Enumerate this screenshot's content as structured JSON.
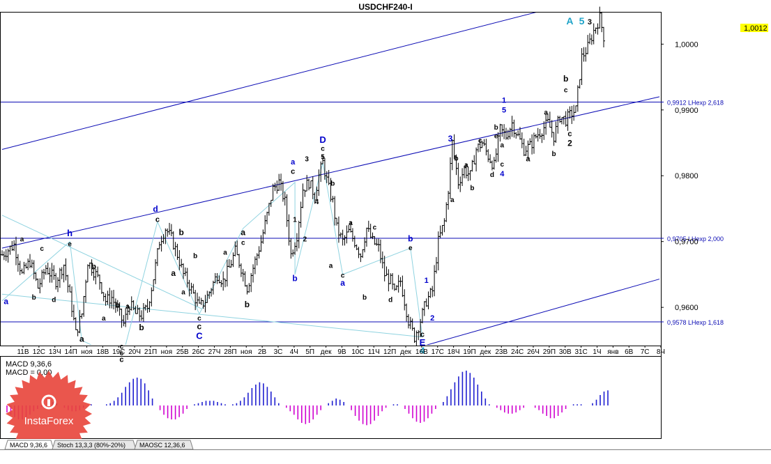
{
  "title": "USDCHF240-I",
  "current_price": "1,0012",
  "colors": {
    "bull_hist": "#1f1fd0",
    "bear_hist": "#d000d0",
    "price_bars": "#000000",
    "channel": "#0a0ab4",
    "fib_line": "#0a0ab4",
    "wave_lines": "#8fd3e0",
    "current_price_bg": "#ffff00",
    "wave_blue": "#0000cc",
    "wave_cyan": "#1ea3c8",
    "logo_red": "#e8443a"
  },
  "chart_data": {
    "type": "ohlc",
    "symbol": "USDCHF",
    "timeframe": "H4",
    "y_ticks": [
      "1,0000",
      "0,9900",
      "0,9800",
      "0,9700",
      "0,9600"
    ],
    "y_tick_values": [
      1.0,
      0.99,
      0.98,
      0.97,
      0.96
    ],
    "ylim": [
      0.9543,
      1.0048
    ],
    "x_ticks": [
      "11В",
      "12С",
      "13Ч",
      "14П",
      "ноя",
      "18В",
      "19С",
      "20Ч",
      "21П",
      "ноя",
      "25В",
      "26С",
      "27Ч",
      "28П",
      "ноя",
      "2В",
      "3С",
      "4Ч",
      "5П",
      "дек",
      "9В",
      "10С",
      "11Ч",
      "12П",
      "дек",
      "16В",
      "17С",
      "18Ч",
      "19П",
      "дек",
      "23В",
      "24С",
      "26Ч",
      "29П",
      "30В",
      "31С",
      "1Ч",
      "янв",
      "6В",
      "7С",
      "8Ч"
    ],
    "fib_levels": [
      {
        "label": "0,9912 LHexp 2,618",
        "value": 0.9912
      },
      {
        "label": "0,9705 LHexp 2,000",
        "value": 0.9705
      },
      {
        "label": "0,9578 LHexp 1,618",
        "value": 0.9578
      }
    ],
    "path_points": [
      [
        0,
        0.968
      ],
      [
        6,
        0.9695
      ],
      [
        10,
        0.965
      ],
      [
        14,
        0.967
      ],
      [
        18,
        0.963
      ],
      [
        22,
        0.966
      ],
      [
        27,
        0.964
      ],
      [
        31,
        0.9665
      ],
      [
        35,
        0.96
      ],
      [
        37,
        0.956
      ],
      [
        40,
        0.959
      ],
      [
        43,
        0.967
      ],
      [
        46,
        0.9655
      ],
      [
        49,
        0.964
      ],
      [
        52,
        0.961
      ],
      [
        55,
        0.9615
      ],
      [
        58,
        0.9595
      ],
      [
        61,
        0.9575
      ],
      [
        64,
        0.9605
      ],
      [
        67,
        0.959
      ],
      [
        70,
        0.9588
      ],
      [
        73,
        0.96
      ],
      [
        76,
        0.9645
      ],
      [
        79,
        0.97
      ],
      [
        82,
        0.972
      ],
      [
        85,
        0.9705
      ],
      [
        88,
        0.968
      ],
      [
        91,
        0.965
      ],
      [
        93,
        0.964
      ],
      [
        96,
        0.962
      ],
      [
        99,
        0.96
      ],
      [
        102,
        0.961
      ],
      [
        105,
        0.963
      ],
      [
        108,
        0.965
      ],
      [
        111,
        0.964
      ],
      [
        114,
        0.966
      ],
      [
        117,
        0.9685
      ],
      [
        120,
        0.966
      ],
      [
        123,
        0.963
      ],
      [
        126,
        0.966
      ],
      [
        130,
        0.97
      ],
      [
        133,
        0.974
      ],
      [
        136,
        0.978
      ],
      [
        139,
        0.979
      ],
      [
        142,
        0.976
      ],
      [
        145,
        0.968
      ],
      [
        148,
        0.971
      ],
      [
        151,
        0.978
      ],
      [
        154,
        0.979
      ],
      [
        157,
        0.977
      ],
      [
        159,
        0.98
      ],
      [
        161,
        0.982
      ],
      [
        164,
        0.978
      ],
      [
        166,
        0.976
      ],
      [
        168,
        0.972
      ],
      [
        171,
        0.97
      ],
      [
        174,
        0.9715
      ],
      [
        177,
        0.97
      ],
      [
        180,
        0.968
      ],
      [
        183,
        0.972
      ],
      [
        186,
        0.97
      ],
      [
        189,
        0.969
      ],
      [
        192,
        0.965
      ],
      [
        195,
        0.964
      ],
      [
        197,
        0.962
      ],
      [
        200,
        0.964
      ],
      [
        202,
        0.961
      ],
      [
        204,
        0.958
      ],
      [
        207,
        0.9555
      ],
      [
        210,
        0.958
      ],
      [
        213,
        0.961
      ],
      [
        216,
        0.9625
      ],
      [
        219,
        0.97
      ],
      [
        222,
        0.973
      ],
      [
        224,
        0.978
      ],
      [
        226,
        0.985
      ],
      [
        229,
        0.979
      ],
      [
        232,
        0.981
      ],
      [
        235,
        0.98
      ],
      [
        238,
        0.984
      ],
      [
        241,
        0.985
      ],
      [
        244,
        0.983
      ],
      [
        247,
        0.9815
      ],
      [
        250,
        0.987
      ],
      [
        253,
        0.986
      ],
      [
        256,
        0.988
      ],
      [
        259,
        0.986
      ],
      [
        262,
        0.984
      ],
      [
        265,
        0.9845
      ],
      [
        268,
        0.986
      ],
      [
        271,
        0.987
      ],
      [
        274,
        0.988
      ],
      [
        277,
        0.986
      ],
      [
        280,
        0.989
      ],
      [
        283,
        0.9885
      ],
      [
        286,
        0.9895
      ],
      [
        288,
        0.99
      ],
      [
        291,
        0.998
      ],
      [
        294,
        0.9995
      ],
      [
        297,
        1.002
      ],
      [
        300,
        1.004
      ],
      [
        302,
        1.0012
      ]
    ],
    "channel_lines": [
      {
        "name": "upper",
        "points": [
          [
            0,
            0.984
          ],
          [
            270,
            1.005
          ]
        ]
      },
      {
        "name": "middle",
        "points": [
          [
            0,
            0.969
          ],
          [
            330,
            0.992
          ]
        ]
      },
      {
        "name": "lower",
        "points": [
          [
            140,
            0.948
          ],
          [
            330,
            0.9643
          ]
        ]
      }
    ],
    "wave_labels": [
      {
        "text": "A",
        "x": 285,
        "y": 1.003,
        "color": "cyan",
        "size": 14
      },
      {
        "text": "5",
        "x": 291,
        "y": 1.003,
        "color": "cyan",
        "size": 14
      },
      {
        "text": "3",
        "x": 295,
        "y": 1.003,
        "color": "black",
        "size": 11
      },
      {
        "text": "D",
        "x": 161,
        "y": 0.985,
        "color": "blue",
        "size": 13
      },
      {
        "text": "c",
        "x": 161,
        "y": 0.9838,
        "color": "black",
        "size": 10
      },
      {
        "text": "5",
        "x": 161,
        "y": 0.9825,
        "color": "black",
        "size": 10
      },
      {
        "text": "a",
        "x": 146,
        "y": 0.9817,
        "color": "blue",
        "size": 11
      },
      {
        "text": "c",
        "x": 146,
        "y": 0.9803,
        "color": "black",
        "size": 11
      },
      {
        "text": "3",
        "x": 153,
        "y": 0.9822,
        "color": "black",
        "size": 10
      },
      {
        "text": "4",
        "x": 158,
        "y": 0.9757,
        "color": "black",
        "size": 10
      },
      {
        "text": "b",
        "x": 166,
        "y": 0.9785,
        "color": "black",
        "size": 10
      },
      {
        "text": "d",
        "x": 77,
        "y": 0.9745,
        "color": "blue",
        "size": 12
      },
      {
        "text": "c",
        "x": 78,
        "y": 0.973,
        "color": "black",
        "size": 11
      },
      {
        "text": "b",
        "x": 90,
        "y": 0.971,
        "color": "black",
        "size": 12
      },
      {
        "text": "h",
        "x": 34,
        "y": 0.9708,
        "color": "blue",
        "size": 13
      },
      {
        "text": "e",
        "x": 34,
        "y": 0.9693,
        "color": "black",
        "size": 10
      },
      {
        "text": "a",
        "x": 10,
        "y": 0.97,
        "color": "black",
        "size": 10
      },
      {
        "text": "c",
        "x": 20,
        "y": 0.9686,
        "color": "black",
        "size": 10
      },
      {
        "text": "a",
        "x": 2,
        "y": 0.9605,
        "color": "blue",
        "size": 12
      },
      {
        "text": "b",
        "x": 16,
        "y": 0.9612,
        "color": "black",
        "size": 10
      },
      {
        "text": "d",
        "x": 26,
        "y": 0.9608,
        "color": "black",
        "size": 10
      },
      {
        "text": "b",
        "x": 46,
        "y": 0.9658,
        "color": "black",
        "size": 12
      },
      {
        "text": "a",
        "x": 40,
        "y": 0.9548,
        "color": "black",
        "size": 12
      },
      {
        "text": "b",
        "x": 58,
        "y": 0.96,
        "color": "black",
        "size": 10
      },
      {
        "text": "a",
        "x": 51,
        "y": 0.958,
        "color": "black",
        "size": 10
      },
      {
        "text": "c",
        "x": 60,
        "y": 0.9537,
        "color": "black",
        "size": 10
      },
      {
        "text": "c",
        "x": 60,
        "y": 0.9527,
        "color": "black",
        "size": 10
      },
      {
        "text": "c",
        "x": 60,
        "y": 0.9517,
        "color": "black",
        "size": 11
      },
      {
        "text": "b",
        "x": 70,
        "y": 0.9565,
        "color": "black",
        "size": 12
      },
      {
        "text": "a",
        "x": 63,
        "y": 0.9598,
        "color": "black",
        "size": 10
      },
      {
        "text": "b",
        "x": 97,
        "y": 0.9675,
        "color": "black",
        "size": 10
      },
      {
        "text": "a",
        "x": 86,
        "y": 0.9648,
        "color": "black",
        "size": 12
      },
      {
        "text": "a",
        "x": 91,
        "y": 0.962,
        "color": "black",
        "size": 10
      },
      {
        "text": "c",
        "x": 99,
        "y": 0.958,
        "color": "black",
        "size": 10
      },
      {
        "text": "c",
        "x": 99,
        "y": 0.9567,
        "color": "black",
        "size": 12
      },
      {
        "text": "C",
        "x": 99,
        "y": 0.9552,
        "color": "blue",
        "size": 13
      },
      {
        "text": "b",
        "x": 123,
        "y": 0.96,
        "color": "black",
        "size": 12
      },
      {
        "text": "a",
        "x": 112,
        "y": 0.968,
        "color": "black",
        "size": 10
      },
      {
        "text": "a",
        "x": 121,
        "y": 0.971,
        "color": "black",
        "size": 12
      },
      {
        "text": "c",
        "x": 121,
        "y": 0.9695,
        "color": "black",
        "size": 10
      },
      {
        "text": "1",
        "x": 147,
        "y": 0.973,
        "color": "black",
        "size": 10
      },
      {
        "text": "2",
        "x": 152,
        "y": 0.97,
        "color": "black",
        "size": 10
      },
      {
        "text": "b",
        "x": 147,
        "y": 0.964,
        "color": "blue",
        "size": 12
      },
      {
        "text": "b",
        "x": 205,
        "y": 0.97,
        "color": "blue",
        "size": 12
      },
      {
        "text": "e",
        "x": 205,
        "y": 0.9687,
        "color": "black",
        "size": 10
      },
      {
        "text": "c",
        "x": 171,
        "y": 0.9645,
        "color": "black",
        "size": 10
      },
      {
        "text": "a",
        "x": 171,
        "y": 0.9633,
        "color": "blue",
        "size": 12
      },
      {
        "text": "a",
        "x": 165,
        "y": 0.966,
        "color": "black",
        "size": 10
      },
      {
        "text": "a",
        "x": 175,
        "y": 0.9725,
        "color": "black",
        "size": 10
      },
      {
        "text": "c",
        "x": 187,
        "y": 0.9718,
        "color": "black",
        "size": 10
      },
      {
        "text": "b",
        "x": 182,
        "y": 0.9612,
        "color": "black",
        "size": 10
      },
      {
        "text": "d",
        "x": 195,
        "y": 0.9608,
        "color": "black",
        "size": 10
      },
      {
        "text": "1",
        "x": 213,
        "y": 0.9637,
        "color": "blue",
        "size": 11
      },
      {
        "text": "2",
        "x": 216,
        "y": 0.958,
        "color": "blue",
        "size": 11
      },
      {
        "text": "c",
        "x": 211,
        "y": 0.9555,
        "color": "black",
        "size": 11
      },
      {
        "text": "E",
        "x": 211,
        "y": 0.9542,
        "color": "blue",
        "size": 13
      },
      {
        "text": "4",
        "x": 211,
        "y": 0.953,
        "color": "cyan",
        "size": 13
      },
      {
        "text": "3",
        "x": 225,
        "y": 0.9852,
        "color": "blue",
        "size": 12
      },
      {
        "text": "b",
        "x": 228,
        "y": 0.9823,
        "color": "black",
        "size": 10
      },
      {
        "text": "a",
        "x": 226,
        "y": 0.976,
        "color": "black",
        "size": 10
      },
      {
        "text": "a",
        "x": 233,
        "y": 0.9813,
        "color": "black",
        "size": 10
      },
      {
        "text": "c",
        "x": 240,
        "y": 0.985,
        "color": "black",
        "size": 10
      },
      {
        "text": "b",
        "x": 236,
        "y": 0.9778,
        "color": "black",
        "size": 10
      },
      {
        "text": "e",
        "x": 248,
        "y": 0.9857,
        "color": "black",
        "size": 10
      },
      {
        "text": "a",
        "x": 251,
        "y": 0.9843,
        "color": "black",
        "size": 10
      },
      {
        "text": "b",
        "x": 248,
        "y": 0.987,
        "color": "black",
        "size": 10
      },
      {
        "text": "d",
        "x": 246,
        "y": 0.9798,
        "color": "black",
        "size": 10
      },
      {
        "text": "c",
        "x": 251,
        "y": 0.9814,
        "color": "black",
        "size": 10
      },
      {
        "text": "4",
        "x": 251,
        "y": 0.9799,
        "color": "blue",
        "size": 11
      },
      {
        "text": "1",
        "x": 252,
        "y": 0.9911,
        "color": "blue",
        "size": 11
      },
      {
        "text": "5",
        "x": 252,
        "y": 0.9896,
        "color": "blue",
        "size": 11
      },
      {
        "text": "a",
        "x": 264,
        "y": 0.9822,
        "color": "black",
        "size": 11
      },
      {
        "text": "a",
        "x": 273,
        "y": 0.9893,
        "color": "black",
        "size": 10
      },
      {
        "text": "b",
        "x": 277,
        "y": 0.983,
        "color": "black",
        "size": 10
      },
      {
        "text": "c",
        "x": 283,
        "y": 0.9927,
        "color": "black",
        "size": 10
      },
      {
        "text": "b",
        "x": 283,
        "y": 0.9943,
        "color": "black",
        "size": 12
      },
      {
        "text": "c",
        "x": 285,
        "y": 0.986,
        "color": "black",
        "size": 11
      },
      {
        "text": "2",
        "x": 285,
        "y": 0.9845,
        "color": "black",
        "size": 12
      }
    ],
    "wave_lines": [
      [
        [
          0,
          0.961
        ],
        [
          34,
          0.97
        ],
        [
          40,
          0.955
        ],
        [
          60,
          0.952
        ],
        [
          78,
          0.973
        ],
        [
          99,
          0.959
        ],
        [
          121,
          0.972
        ],
        [
          147,
          0.979
        ],
        [
          147,
          0.965
        ],
        [
          161,
          0.982
        ],
        [
          171,
          0.965
        ],
        [
          205,
          0.969
        ],
        [
          211,
          0.9555
        ]
      ],
      [
        [
          0,
          0.974
        ],
        [
          100,
          0.9598
        ]
      ],
      [
        [
          0,
          0.962
        ],
        [
          211,
          0.9555
        ]
      ]
    ],
    "macd": {
      "label": "MACD 9,36,6",
      "zero_label": "MACD = 0,00",
      "values": [
        -0.0006,
        -0.0008,
        -0.001,
        -0.0012,
        -0.0012,
        -0.001,
        -0.0008,
        -0.0005,
        -0.0003,
        -0.0001,
        0.0,
        0.0002,
        0.0003,
        0.0002,
        0.0,
        -0.0002,
        -0.0004,
        -0.0005,
        -0.0005,
        -0.0004,
        -0.0002,
        0.0,
        0.0001,
        0.0,
        0.0,
        0.0,
        0.0001,
        0.0002,
        0.0004,
        0.0007,
        0.0011,
        0.0016,
        0.002,
        0.0023,
        0.0024,
        0.0023,
        0.0019,
        0.0013,
        0.0006,
        0.0,
        -0.0004,
        -0.0008,
        -0.0011,
        -0.0012,
        -0.0012,
        -0.001,
        -0.0007,
        -0.0003,
        0.0,
        0.0001,
        0.0002,
        0.0003,
        0.0004,
        0.0004,
        0.0004,
        0.0003,
        0.0002,
        0.0001,
        0.0,
        0.0001,
        0.0002,
        0.0004,
        0.0007,
        0.0011,
        0.0015,
        0.0018,
        0.002,
        0.0019,
        0.0016,
        0.0012,
        0.0007,
        0.0002,
        0.0,
        -0.0002,
        -0.0005,
        -0.0008,
        -0.0012,
        -0.0015,
        -0.0016,
        -0.0015,
        -0.0012,
        -0.0008,
        -0.0004,
        0.0,
        0.0002,
        0.0004,
        0.0006,
        0.0005,
        0.0003,
        0.0,
        -0.0004,
        -0.0009,
        -0.0013,
        -0.0016,
        -0.0017,
        -0.0016,
        -0.0013,
        -0.0009,
        -0.0005,
        -0.0002,
        0.0,
        0.0001,
        0.0001,
        0.0,
        -0.0003,
        -0.0007,
        -0.0011,
        -0.0014,
        -0.0015,
        -0.0014,
        -0.0011,
        -0.0007,
        -0.0003,
        0.0,
        0.0003,
        0.0008,
        0.0014,
        0.002,
        0.0025,
        0.0029,
        0.003,
        0.0028,
        0.0024,
        0.0018,
        0.0012,
        0.0006,
        0.0001,
        0.0,
        -0.0002,
        -0.0004,
        -0.0006,
        -0.0007,
        -0.0007,
        -0.0006,
        -0.0004,
        -0.0002,
        0.0,
        0.0,
        -0.0002,
        -0.0004,
        -0.0007,
        -0.0009,
        -0.0011,
        -0.0011,
        -0.0009,
        -0.0006,
        -0.0003,
        0.0,
        0.0001,
        0.0001,
        0.0001,
        0.0,
        0.0,
        0.0002,
        0.0005,
        0.0009,
        0.0012,
        0.0013
      ]
    }
  },
  "tabs": [
    {
      "label": "MACD 9,36,6",
      "active": true
    },
    {
      "label": "Stoch 13,3,3 (80%-20%)",
      "active": false
    },
    {
      "label": "MAOSC 12,36,6",
      "active": false
    }
  ],
  "logo": {
    "text": "InstaForex"
  }
}
